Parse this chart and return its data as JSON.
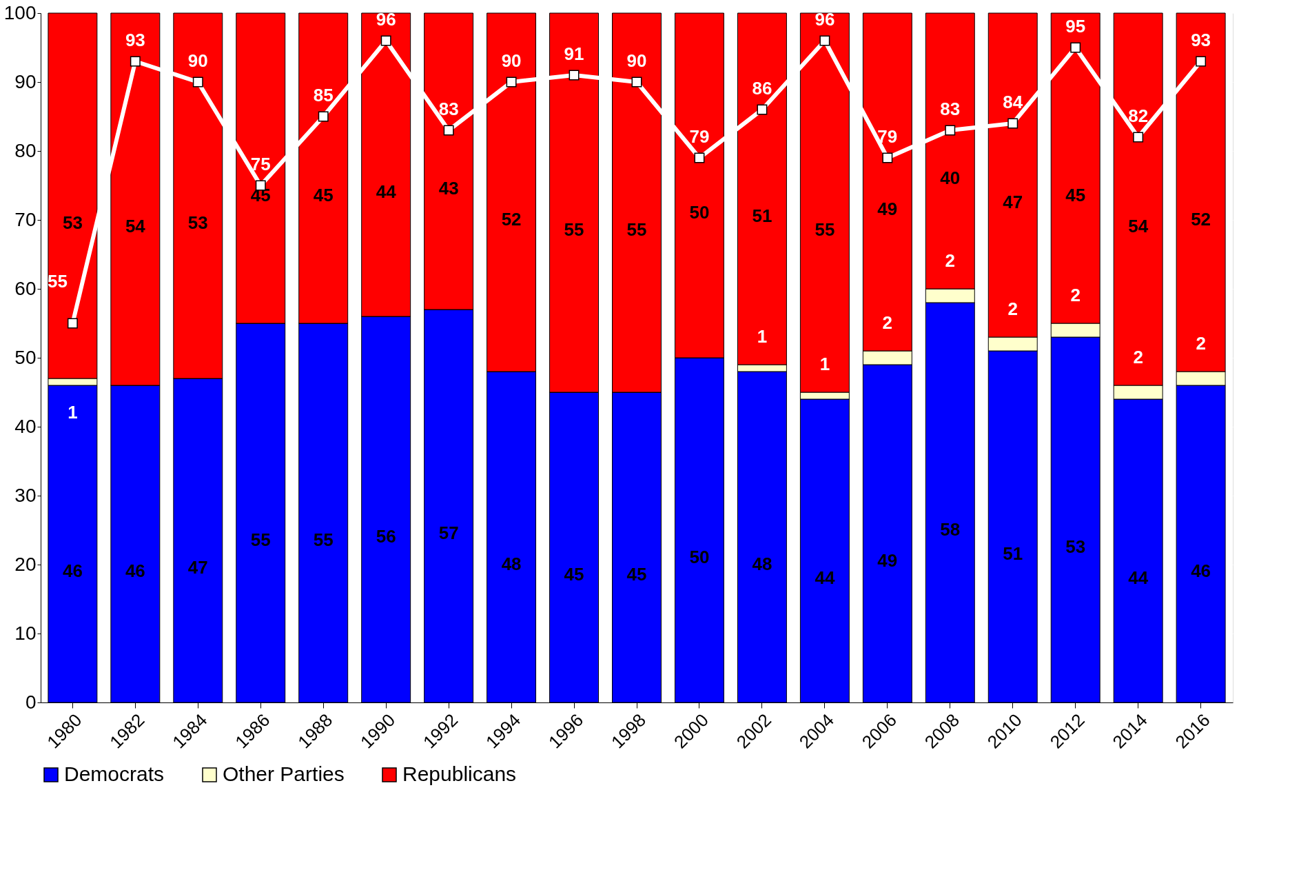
{
  "chart_data": {
    "type": "bar",
    "stacked": true,
    "categories": [
      "1980",
      "1982",
      "1984",
      "1986",
      "1988",
      "1990",
      "1992",
      "1994",
      "1996",
      "1998",
      "2000",
      "2002",
      "2004",
      "2006",
      "2008",
      "2010",
      "2012",
      "2014",
      "2016"
    ],
    "series": [
      {
        "name": "Democrats",
        "color": "#0000ff",
        "values": [
          46,
          46,
          47,
          55,
          55,
          56,
          57,
          48,
          45,
          45,
          50,
          48,
          44,
          49,
          58,
          51,
          53,
          44,
          46
        ],
        "value_labels": [
          "46",
          "46",
          "47",
          "55",
          "55",
          "56",
          "57",
          "48",
          "45",
          "45",
          "50",
          "48",
          "44",
          "49",
          "58",
          "51",
          "53",
          "44",
          "46"
        ]
      },
      {
        "name": "Other Parties",
        "color": "#ffffcc",
        "values": [
          1,
          0,
          0,
          0,
          0,
          0,
          0,
          0,
          0,
          0,
          0,
          1,
          1,
          2,
          2,
          2,
          2,
          2,
          2
        ],
        "value_labels": [
          "1",
          null,
          null,
          null,
          null,
          null,
          null,
          null,
          null,
          null,
          null,
          "1",
          "1",
          "2",
          "2",
          "2",
          "2",
          "2",
          "2"
        ]
      },
      {
        "name": "Republicans",
        "color": "#ff0000",
        "values": [
          53,
          54,
          53,
          45,
          45,
          44,
          43,
          52,
          55,
          55,
          50,
          51,
          55,
          49,
          40,
          47,
          45,
          54,
          52
        ],
        "value_labels": [
          "53",
          "54",
          "53",
          "45",
          "45",
          "44",
          "43",
          "52",
          "55",
          "55",
          "50",
          "51",
          "55",
          "49",
          "40",
          "47",
          "45",
          "54",
          "52"
        ]
      },
      {
        "type": "line",
        "color": "#ffffff",
        "marker": "square",
        "values": [
          55,
          93,
          90,
          75,
          85,
          96,
          83,
          90,
          91,
          90,
          79,
          86,
          96,
          79,
          83,
          84,
          95,
          82,
          93
        ],
        "value_labels": [
          "55",
          "93",
          "90",
          "75",
          "85",
          "96",
          "83",
          "90",
          "91",
          "90",
          "79",
          "86",
          "96",
          "79",
          "83",
          "84",
          "95",
          "82",
          "93"
        ]
      }
    ],
    "ylim": [
      0,
      100
    ],
    "yticks": [
      0,
      10,
      20,
      30,
      40,
      50,
      60,
      70,
      80,
      90,
      100
    ],
    "grid": "y",
    "legend": "bottom"
  }
}
